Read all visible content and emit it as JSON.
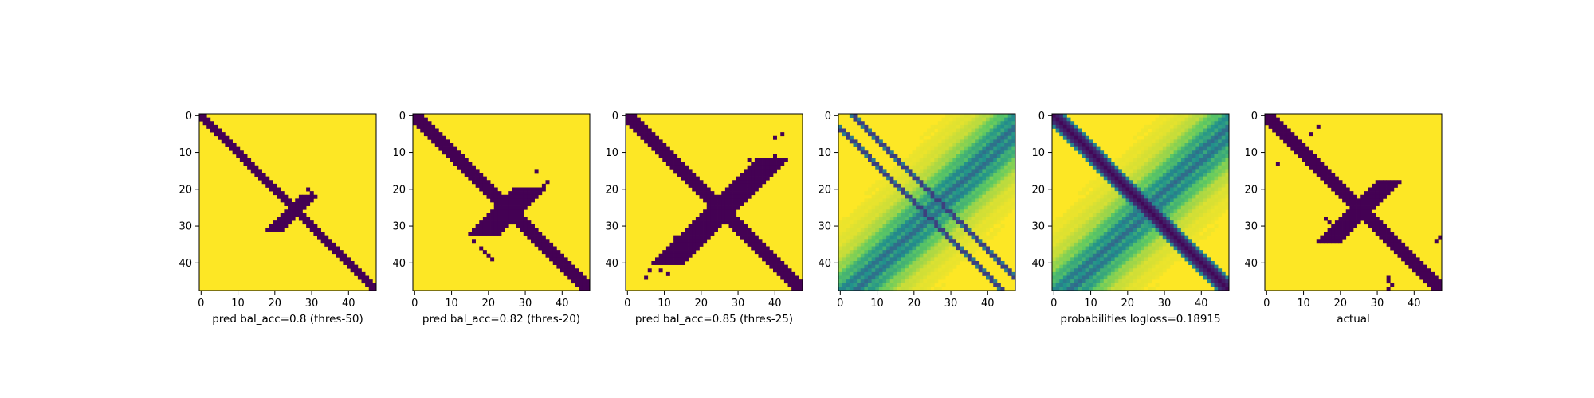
{
  "chart_data": [
    {
      "type": "heatmap",
      "xlabel": "pred bal_acc=0.8 (thres-50)",
      "x_ticks": [
        0,
        10,
        20,
        30,
        40
      ],
      "y_ticks": [
        0,
        10,
        20,
        30,
        40
      ],
      "xlim": [
        -0.5,
        47.5
      ],
      "ylim": [
        47.5,
        -0.5
      ],
      "grid_size": 48,
      "colormap": "viridis (binary)",
      "pattern": "diagonal band (half-width ~1.8) plus small cross near 22-31",
      "band_width": 1.8,
      "cross_range": [
        22,
        31
      ],
      "cross_width": 1.4,
      "speckles": [
        [
          20,
          29
        ],
        [
          21,
          30
        ]
      ]
    },
    {
      "type": "heatmap",
      "xlabel": "pred bal_acc=0.82 (thres-20)",
      "x_ticks": [
        0,
        10,
        20,
        30,
        40
      ],
      "y_ticks": [
        0,
        10,
        20,
        30,
        40
      ],
      "xlim": [
        -0.5,
        47.5
      ],
      "ylim": [
        47.5,
        -0.5
      ],
      "grid_size": 48,
      "colormap": "viridis (binary)",
      "pattern": "diagonal band (half-width ~2.3) plus cross near 20-32",
      "band_width": 2.3,
      "cross_range": [
        20,
        32
      ],
      "cross_width": 2.2,
      "speckles": [
        [
          15,
          33
        ],
        [
          18,
          36
        ],
        [
          19,
          35
        ],
        [
          20,
          34
        ],
        [
          31,
          22
        ],
        [
          34,
          16
        ],
        [
          36,
          18
        ],
        [
          37,
          19
        ],
        [
          38,
          20
        ],
        [
          39,
          21
        ]
      ]
    },
    {
      "type": "heatmap",
      "xlabel": "pred bal_acc=0.85 (thres-25)",
      "x_ticks": [
        0,
        10,
        20,
        30,
        40
      ],
      "y_ticks": [
        0,
        10,
        20,
        30,
        40
      ],
      "xlim": [
        -0.5,
        47.5
      ],
      "ylim": [
        47.5,
        -0.5
      ],
      "grid_size": 48,
      "colormap": "viridis (binary)",
      "pattern": "diagonal band (half-width ~2.6) plus long cross from ~10 to ~40",
      "band_width": 2.6,
      "cross_range": [
        12,
        40
      ],
      "cross_width": 2.0,
      "speckles": [
        [
          42,
          6
        ],
        [
          44,
          5
        ],
        [
          42,
          9
        ],
        [
          43,
          11
        ],
        [
          40,
          12
        ],
        [
          38,
          14
        ],
        [
          35,
          12
        ],
        [
          33,
          13
        ],
        [
          12,
          33
        ],
        [
          11,
          40
        ],
        [
          6,
          40
        ],
        [
          5,
          42
        ]
      ]
    },
    {
      "type": "heatmap",
      "xlabel": "",
      "x_ticks": [
        0,
        10,
        20,
        30,
        40
      ],
      "y_ticks": [
        0,
        10,
        20,
        30,
        40
      ],
      "xlim": [
        -0.5,
        47.5
      ],
      "ylim": [
        47.5,
        -0.5
      ],
      "grid_size": 48,
      "colormap": "viridis (continuous)",
      "pattern": "off-diagonal stripes at offset ~3 with soft anti-diagonal haze",
      "stripe_offset": 3
    },
    {
      "type": "heatmap",
      "xlabel": "probabilities logloss=0.18915",
      "x_ticks": [
        0,
        10,
        20,
        30,
        40
      ],
      "y_ticks": [
        0,
        10,
        20,
        30,
        40
      ],
      "xlim": [
        -0.5,
        47.5
      ],
      "ylim": [
        47.5,
        -0.5
      ],
      "grid_size": 48,
      "colormap": "viridis (continuous)",
      "pattern": "strong diagonal band with soft anti-diagonal haze"
    },
    {
      "type": "heatmap",
      "xlabel": "actual",
      "x_ticks": [
        0,
        10,
        20,
        30,
        40
      ],
      "y_ticks": [
        0,
        10,
        20,
        30,
        40
      ],
      "xlim": [
        -0.5,
        47.5
      ],
      "ylim": [
        47.5,
        -0.5
      ],
      "grid_size": 48,
      "colormap": "viridis (binary)",
      "pattern": "irregular diagonal band plus cross near 18-34",
      "band_width": 2.0,
      "cross_range": [
        18,
        34
      ],
      "cross_width": 1.6,
      "speckles": [
        [
          13,
          3
        ],
        [
          5,
          12
        ],
        [
          3,
          14
        ],
        [
          28,
          16
        ],
        [
          29,
          17
        ],
        [
          44,
          33
        ],
        [
          45,
          33
        ],
        [
          46,
          34
        ],
        [
          47,
          33
        ],
        [
          34,
          46
        ],
        [
          33,
          47
        ]
      ]
    }
  ]
}
